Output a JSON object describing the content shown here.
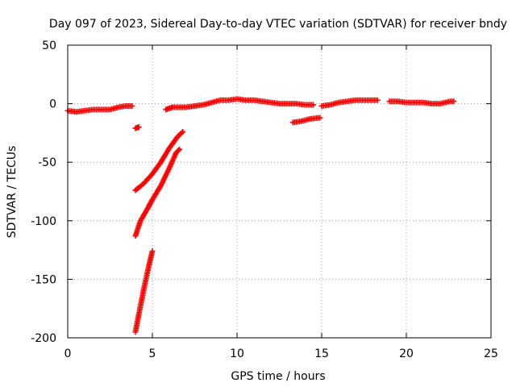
{
  "chart_data": {
    "type": "scatter",
    "title": "Day 097 of 2023, Sidereal Day-to-day VTEC variation (SDTVAR) for receiver bndy",
    "xlabel": "GPS time / hours",
    "ylabel": "SDTVAR / TECUs",
    "xlim": [
      0,
      25
    ],
    "ylim": [
      -200,
      50
    ],
    "xticks": [
      0,
      5,
      10,
      15,
      20,
      25
    ],
    "yticks": [
      -200,
      -150,
      -100,
      -50,
      0,
      50
    ],
    "grid": true,
    "marker": "plus",
    "color": "#ff0000",
    "series": [
      {
        "name": "SDTVAR",
        "segments": [
          [
            [
              0.0,
              -6
            ],
            [
              0.5,
              -7
            ],
            [
              1.0,
              -6
            ],
            [
              1.5,
              -5
            ],
            [
              2.0,
              -5
            ],
            [
              2.5,
              -5
            ],
            [
              3.0,
              -3
            ],
            [
              3.4,
              -2
            ],
            [
              3.8,
              -2
            ]
          ],
          [
            [
              4.0,
              -21
            ],
            [
              4.2,
              -20
            ]
          ],
          [
            [
              4.0,
              -74
            ],
            [
              4.5,
              -68
            ],
            [
              5.0,
              -60
            ],
            [
              5.5,
              -50
            ],
            [
              6.0,
              -38
            ],
            [
              6.5,
              -28
            ],
            [
              6.8,
              -24
            ]
          ],
          [
            [
              4.0,
              -113
            ],
            [
              4.3,
              -100
            ],
            [
              4.7,
              -90
            ],
            [
              5.0,
              -82
            ],
            [
              5.5,
              -70
            ],
            [
              6.0,
              -55
            ],
            [
              6.4,
              -42
            ],
            [
              6.6,
              -39
            ]
          ],
          [
            [
              4.0,
              -195
            ],
            [
              4.2,
              -180
            ],
            [
              4.5,
              -158
            ],
            [
              4.8,
              -138
            ],
            [
              5.0,
              -126
            ]
          ],
          [
            [
              5.8,
              -5
            ],
            [
              6.2,
              -3
            ],
            [
              7.0,
              -3
            ],
            [
              7.5,
              -2
            ],
            [
              8.0,
              -1
            ],
            [
              8.5,
              1
            ],
            [
              9.0,
              3
            ],
            [
              9.5,
              3
            ],
            [
              10.0,
              4
            ],
            [
              10.5,
              3
            ],
            [
              11.0,
              3
            ],
            [
              11.5,
              2
            ],
            [
              12.0,
              1
            ],
            [
              12.5,
              0
            ],
            [
              13.0,
              0
            ],
            [
              13.5,
              0
            ],
            [
              14.0,
              -1
            ],
            [
              14.5,
              -1
            ]
          ],
          [
            [
              13.3,
              -16
            ],
            [
              13.8,
              -15
            ],
            [
              14.3,
              -13
            ],
            [
              14.9,
              -12
            ]
          ],
          [
            [
              15.0,
              -2
            ],
            [
              15.5,
              -1
            ],
            [
              16.0,
              1
            ],
            [
              16.5,
              2
            ],
            [
              17.0,
              3
            ],
            [
              17.5,
              3
            ],
            [
              18.0,
              3
            ],
            [
              18.3,
              3
            ]
          ],
          [
            [
              19.0,
              2
            ],
            [
              19.5,
              2
            ],
            [
              20.0,
              1
            ],
            [
              20.5,
              1
            ],
            [
              21.0,
              1
            ],
            [
              21.5,
              0
            ],
            [
              22.0,
              0
            ],
            [
              22.3,
              1
            ],
            [
              22.6,
              2
            ],
            [
              22.8,
              2
            ]
          ]
        ]
      }
    ]
  }
}
